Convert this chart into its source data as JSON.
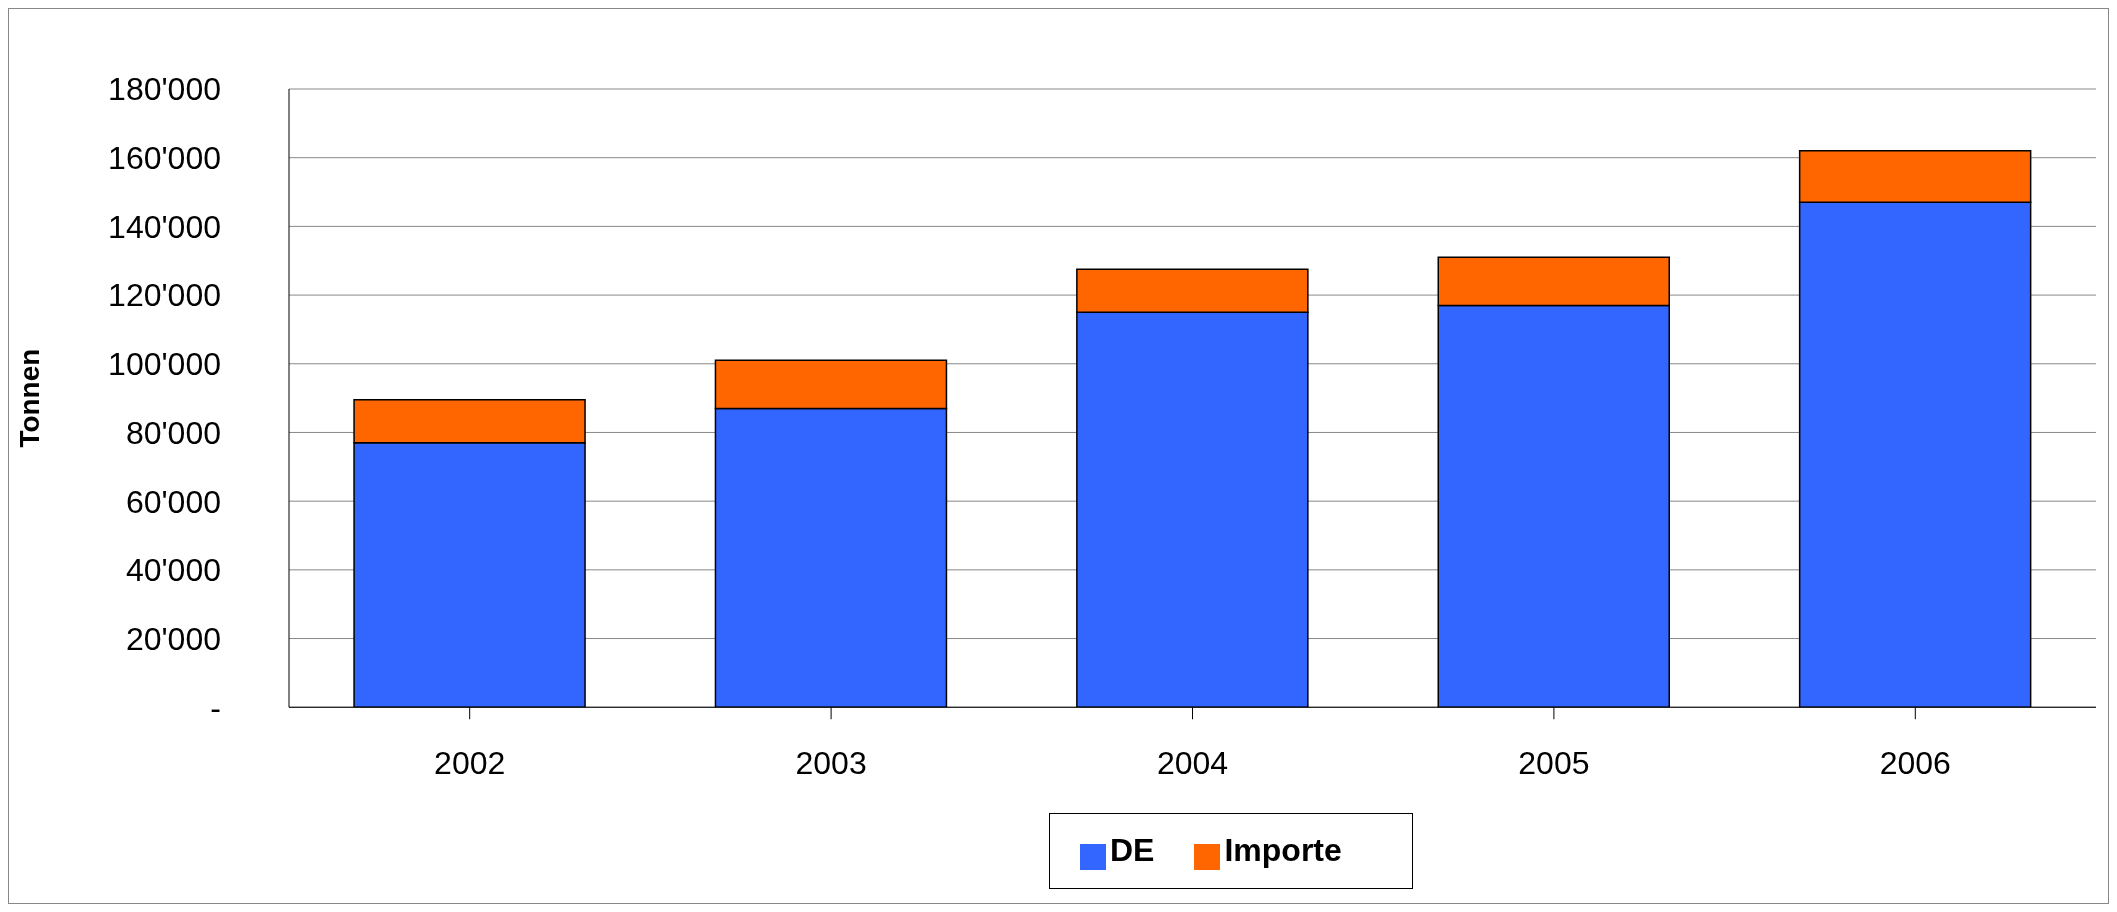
{
  "chart_data": {
    "type": "bar",
    "stacked": true,
    "ylabel": "Tonnen",
    "categories": [
      "2002",
      "2003",
      "2004",
      "2005",
      "2006"
    ],
    "series": [
      {
        "name": "DE",
        "color": "#3366ff",
        "values": [
          77000,
          87000,
          115000,
          117000,
          147000
        ]
      },
      {
        "name": "Importe",
        "color": "#ff6600",
        "values": [
          12500,
          14000,
          12500,
          14000,
          15000
        ]
      }
    ],
    "ylim": [
      0,
      180000
    ],
    "yticks": [
      {
        "value": 0,
        "label": "-"
      },
      {
        "value": 20000,
        "label": "20'000"
      },
      {
        "value": 40000,
        "label": "40'000"
      },
      {
        "value": 60000,
        "label": "60'000"
      },
      {
        "value": 80000,
        "label": "80'000"
      },
      {
        "value": 100000,
        "label": "100'000"
      },
      {
        "value": 120000,
        "label": "120'000"
      },
      {
        "value": 140000,
        "label": "140'000"
      },
      {
        "value": 160000,
        "label": "160'000"
      },
      {
        "value": 180000,
        "label": "180'000"
      }
    ],
    "grid": "y",
    "legend": "bottom"
  }
}
